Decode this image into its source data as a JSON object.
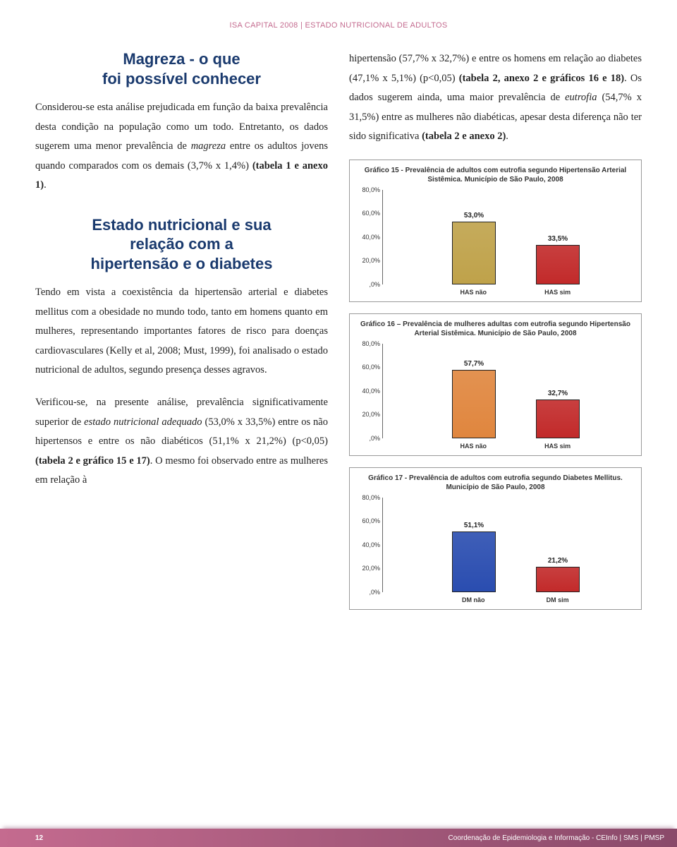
{
  "header": "ISA CAPITAL 2008 | ESTADO NUTRICIONAL DE ADULTOS",
  "left": {
    "h1": "Magreza - o que\nfoi possível conhecer",
    "p1a": "Considerou-se esta análise prejudicada em função da baixa prevalência desta condição na população como um todo. Entretanto, os dados sugerem uma menor prevalência de ",
    "p1_italic": "magreza",
    "p1b": " entre os adultos jovens quando comparados com os demais (3,7% x 1,4%) ",
    "p1_bold": "(tabela 1 e anexo 1)",
    "p1c": ".",
    "h2": "Estado nutricional e sua\nrelação com a\nhipertensão e o diabetes",
    "p2": "Tendo em vista a coexistência da hipertensão arterial e diabetes mellitus com a obesidade no mundo todo, tanto em homens quanto em mulheres, representando importantes fatores de risco para doenças cardiovasculares (Kelly et al, 2008; Must, 1999), foi analisado o estado nutricional de adultos, segundo presença desses agravos.",
    "p3a": "Verificou-se, na presente análise, prevalência significativamente superior de ",
    "p3_italic": "estado nutricional adequado",
    "p3b": " (53,0% x 33,5%) entre os não hipertensos e entre os não diabéticos (51,1% x 21,2%) (p<0,05) ",
    "p3_bold": "(tabela 2 e gráfico 15 e 17)",
    "p3c": ". O mesmo foi observado entre as mulheres em relação à"
  },
  "right": {
    "p1a": "hipertensão (57,7% x 32,7%) e entre os homens em relação ao diabetes (47,1% x 5,1%) (p<0,05) ",
    "p1_bold1": "(tabela 2, anexo 2 e gráficos 16 e 18)",
    "p1b": ". Os dados sugerem ainda, uma maior prevalência de ",
    "p1_italic": "eutrofia",
    "p1c": " (54,7% x 31,5%) entre as mulheres não diabéticas, apesar desta diferença não ter sido significativa ",
    "p1_bold2": "(tabela 2 e anexo 2)",
    "p1d": "."
  },
  "charts": {
    "c15": {
      "title": "Gráfico 15 - Prevalência de adultos com eutrofia segundo Hipertensão Arterial Sistêmica. Município de São Paulo, 2008",
      "yticks": [
        "80,0%",
        "60,0%",
        "40,0%",
        "20,0%",
        ",0%"
      ],
      "ymax": 80,
      "bars": [
        {
          "label": "53,0%",
          "value": 53.0,
          "color": "#bfa24a",
          "xlabel": "HAS não"
        },
        {
          "label": "33,5%",
          "value": 33.5,
          "color": "#c22a2a",
          "xlabel": "HAS sim"
        }
      ]
    },
    "c16": {
      "title": "Gráfico 16 – Prevalência de mulheres adultas com eutrofia segundo Hipertensão Arterial Sistêmica. Município de São Paulo, 2008",
      "yticks": [
        "80,0%",
        "60,0%",
        "40,0%",
        "20,0%",
        ",0%"
      ],
      "ymax": 80,
      "bars": [
        {
          "label": "57,7%",
          "value": 57.7,
          "color": "#e0863e",
          "xlabel": "HAS não"
        },
        {
          "label": "32,7%",
          "value": 32.7,
          "color": "#c22a2a",
          "xlabel": "HAS sim"
        }
      ]
    },
    "c17": {
      "title": "Gráfico 17 - Prevalência de adultos com eutrofia segundo Diabetes Mellitus. Município de São Paulo, 2008",
      "yticks": [
        "80,0%",
        "60,0%",
        "40,0%",
        "20,0%",
        ",0%"
      ],
      "ymax": 80,
      "bars": [
        {
          "label": "51,1%",
          "value": 51.1,
          "color": "#2a4db0",
          "xlabel": "DM não"
        },
        {
          "label": "21,2%",
          "value": 21.2,
          "color": "#c22a2a",
          "xlabel": "DM sim"
        }
      ]
    }
  },
  "footer": {
    "page": "12",
    "right": "Coordenação de Epidemiologia e Informação - CEInfo | SMS | PMSP"
  }
}
